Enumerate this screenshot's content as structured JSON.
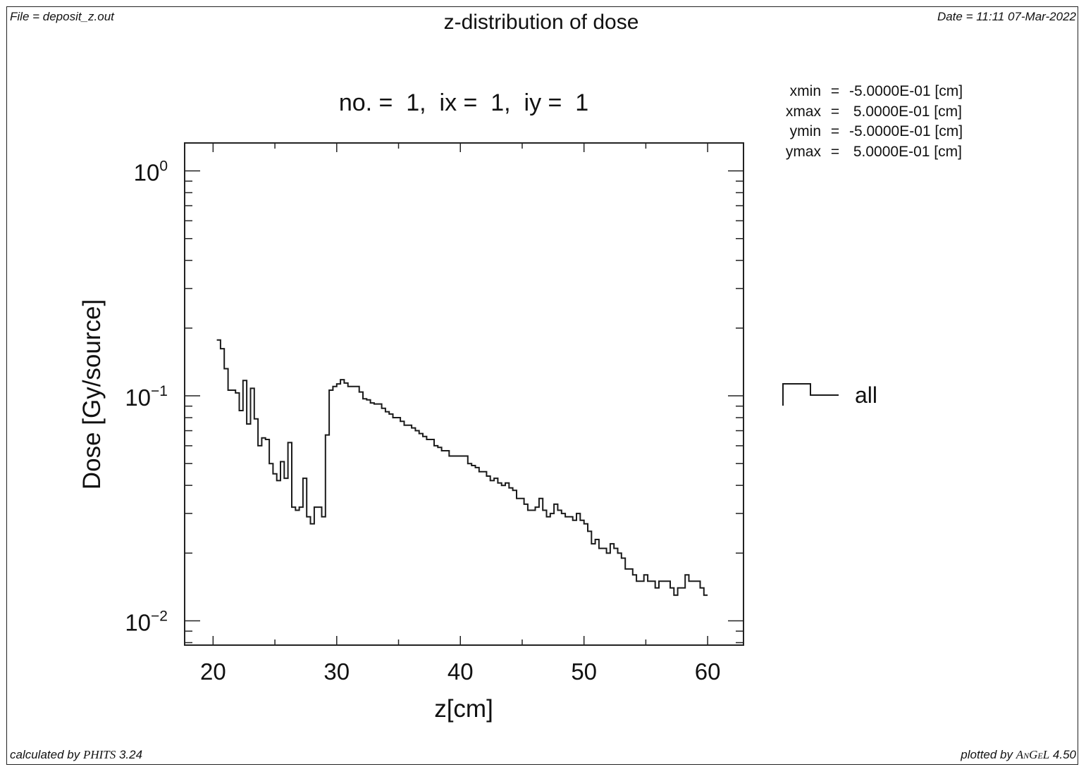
{
  "header": {
    "file": "File = deposit_z.out",
    "date": "Date = 11:11 07-Mar-2022",
    "title": "z-distribution of dose"
  },
  "footer": {
    "calculated_prefix": "calculated by ",
    "calculated_code": "PHITS",
    "calculated_version": " 3.24",
    "plotted_prefix": "plotted by ",
    "plotted_code": "AnGeL",
    "plotted_version": " 4.50"
  },
  "params": [
    {
      "name": "xmin",
      "eq": "=",
      "value": "-5.0000E-01 [cm]"
    },
    {
      "name": "xmax",
      "eq": "=",
      "value": " 5.0000E-01 [cm]"
    },
    {
      "name": "ymin",
      "eq": "=",
      "value": "-5.0000E-01 [cm]"
    },
    {
      "name": "ymax",
      "eq": "=",
      "value": " 5.0000E-01 [cm]"
    }
  ],
  "chart_data": {
    "type": "line",
    "style": "step",
    "subtitle": "no. =  1,  ix =  1,  iy =  1",
    "xlabel": "z[cm]",
    "ylabel": "Dose [Gy/source]",
    "xlim": [
      17.7,
      62.9
    ],
    "ylim": [
      0.0078,
      1.33
    ],
    "yscale": "log",
    "grid": false,
    "legend_position": "right",
    "x_ticks": [
      {
        "value": 20,
        "label": "20"
      },
      {
        "value": 30,
        "label": "30"
      },
      {
        "value": 40,
        "label": "40"
      },
      {
        "value": 50,
        "label": "50"
      },
      {
        "value": 60,
        "label": "60"
      }
    ],
    "y_ticks": [
      {
        "value": 1,
        "base": "10",
        "exp": "0"
      },
      {
        "value": 0.1,
        "base": "10",
        "exp": "−1"
      },
      {
        "value": 0.01,
        "base": "10",
        "exp": "−2"
      }
    ],
    "bin_edges_range": [
      20.3,
      60.0
    ],
    "series": [
      {
        "name": "all",
        "color": "#1a1a1a",
        "values": [
          0.177,
          0.162,
          0.132,
          0.106,
          0.106,
          0.103,
          0.086,
          0.117,
          0.075,
          0.108,
          0.079,
          0.06,
          0.065,
          0.064,
          0.05,
          0.045,
          0.042,
          0.051,
          0.043,
          0.062,
          0.032,
          0.031,
          0.032,
          0.043,
          0.029,
          0.027,
          0.032,
          0.032,
          0.029,
          0.067,
          0.106,
          0.11,
          0.113,
          0.118,
          0.114,
          0.11,
          0.11,
          0.11,
          0.104,
          0.097,
          0.096,
          0.093,
          0.092,
          0.092,
          0.088,
          0.085,
          0.083,
          0.08,
          0.08,
          0.077,
          0.074,
          0.074,
          0.072,
          0.07,
          0.068,
          0.066,
          0.064,
          0.064,
          0.06,
          0.059,
          0.057,
          0.057,
          0.054,
          0.054,
          0.054,
          0.054,
          0.054,
          0.05,
          0.049,
          0.048,
          0.046,
          0.046,
          0.044,
          0.042,
          0.043,
          0.041,
          0.04,
          0.041,
          0.039,
          0.038,
          0.035,
          0.035,
          0.033,
          0.031,
          0.031,
          0.032,
          0.035,
          0.031,
          0.029,
          0.03,
          0.033,
          0.031,
          0.03,
          0.029,
          0.029,
          0.028,
          0.03,
          0.028,
          0.027,
          0.025,
          0.022,
          0.023,
          0.021,
          0.021,
          0.02,
          0.022,
          0.021,
          0.02,
          0.019,
          0.017,
          0.017,
          0.016,
          0.015,
          0.015,
          0.016,
          0.015,
          0.015,
          0.014,
          0.015,
          0.015,
          0.015,
          0.014,
          0.013,
          0.014,
          0.014,
          0.016,
          0.015,
          0.015,
          0.015,
          0.014,
          0.013
        ]
      }
    ]
  }
}
